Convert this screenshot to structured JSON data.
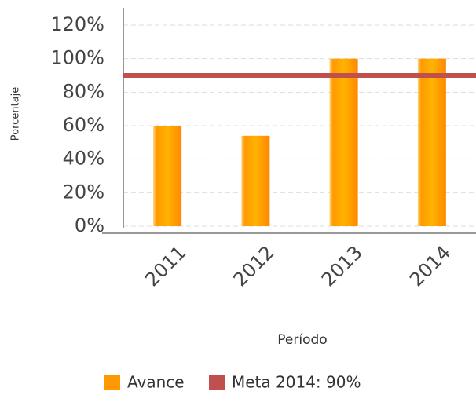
{
  "chart_data": {
    "type": "bar",
    "x_label": "Período",
    "y_label": "Porcentaje",
    "categories": [
      "2011",
      "2012",
      "2013",
      "2014"
    ],
    "series": [
      {
        "name": "Avance",
        "color": "#ff9900",
        "values": [
          60,
          54,
          100,
          100
        ]
      }
    ],
    "target": {
      "name": "Meta 2014: 90%",
      "value": 90,
      "color": "#c0504d"
    },
    "ylim": [
      0,
      120
    ],
    "yticks": [
      {
        "value": 0,
        "label": "0%"
      },
      {
        "value": 20,
        "label": "20%"
      },
      {
        "value": 40,
        "label": "40%"
      },
      {
        "value": 60,
        "label": "60%"
      },
      {
        "value": 80,
        "label": "80%"
      },
      {
        "value": 100,
        "label": "100%"
      },
      {
        "value": 120,
        "label": "120%"
      }
    ],
    "grid": true
  }
}
